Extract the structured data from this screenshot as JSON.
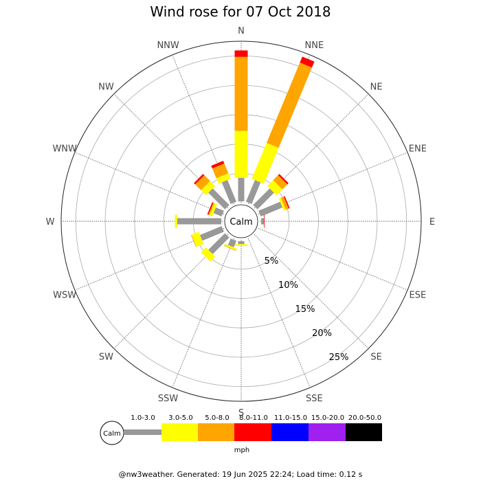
{
  "title": "Wind rose for 07 Oct 2018",
  "footer": "@nw3weather. Generated: 19 Jun 2025 22:24; Load time: 0.12 s",
  "calm_label": "Calm",
  "units_label": "mph",
  "chart_data": {
    "type": "wind-rose",
    "title": "Wind rose for 07 Oct 2018",
    "directions": [
      "N",
      "NNE",
      "NE",
      "ENE",
      "E",
      "ESE",
      "SE",
      "SSE",
      "S",
      "SSW",
      "SW",
      "WSW",
      "W",
      "WNW",
      "NW",
      "NNW"
    ],
    "radial_ticks": [
      "5%",
      "10%",
      "15%",
      "20%",
      "25%"
    ],
    "radial_max": 27.5,
    "bins": [
      {
        "label": "1.0-3.0",
        "color": "#999999"
      },
      {
        "label": "3.0-5.0",
        "color": "#ffff00"
      },
      {
        "label": "5.0-8.0",
        "color": "#ffa500"
      },
      {
        "label": "8.0-11.0",
        "color": "#ff0000"
      },
      {
        "label": "11.0-15.0",
        "color": "#0000ff"
      },
      {
        "label": "15.0-20.0",
        "color": "#a020f0"
      },
      {
        "label": "20.0-50.0",
        "color": "#000000"
      }
    ],
    "values": [
      [
        4.0,
        8.0,
        12.6,
        1.1,
        0,
        0,
        0
      ],
      [
        4.0,
        6.6,
        14.8,
        1.1,
        0,
        0,
        0
      ],
      [
        4.0,
        1.4,
        1.2,
        0.3,
        0,
        0,
        0
      ],
      [
        4.0,
        0.4,
        0.5,
        0.2,
        0,
        0,
        0
      ],
      [
        0.5,
        0,
        0,
        0.1,
        0,
        0,
        0
      ],
      [
        0,
        0,
        0,
        0,
        0,
        0,
        0
      ],
      [
        0,
        0,
        0,
        0,
        0,
        0,
        0
      ],
      [
        0,
        0,
        0,
        0,
        0,
        0,
        0
      ],
      [
        0.5,
        0.3,
        0,
        0,
        0,
        0,
        0
      ],
      [
        1.2,
        0.3,
        0.1,
        0,
        0,
        0,
        0
      ],
      [
        4.0,
        1.2,
        0,
        0,
        0,
        0,
        0
      ],
      [
        4.0,
        1.3,
        0.1,
        0,
        0,
        0,
        0
      ],
      [
        7.5,
        0.4,
        0,
        0,
        0,
        0,
        0
      ],
      [
        1.5,
        0.5,
        0.2,
        0.2,
        0,
        0,
        0
      ],
      [
        4.0,
        1.2,
        1.4,
        0.3,
        0,
        0,
        0
      ],
      [
        4.0,
        1.0,
        1.8,
        0.5,
        0,
        0,
        0
      ]
    ]
  }
}
